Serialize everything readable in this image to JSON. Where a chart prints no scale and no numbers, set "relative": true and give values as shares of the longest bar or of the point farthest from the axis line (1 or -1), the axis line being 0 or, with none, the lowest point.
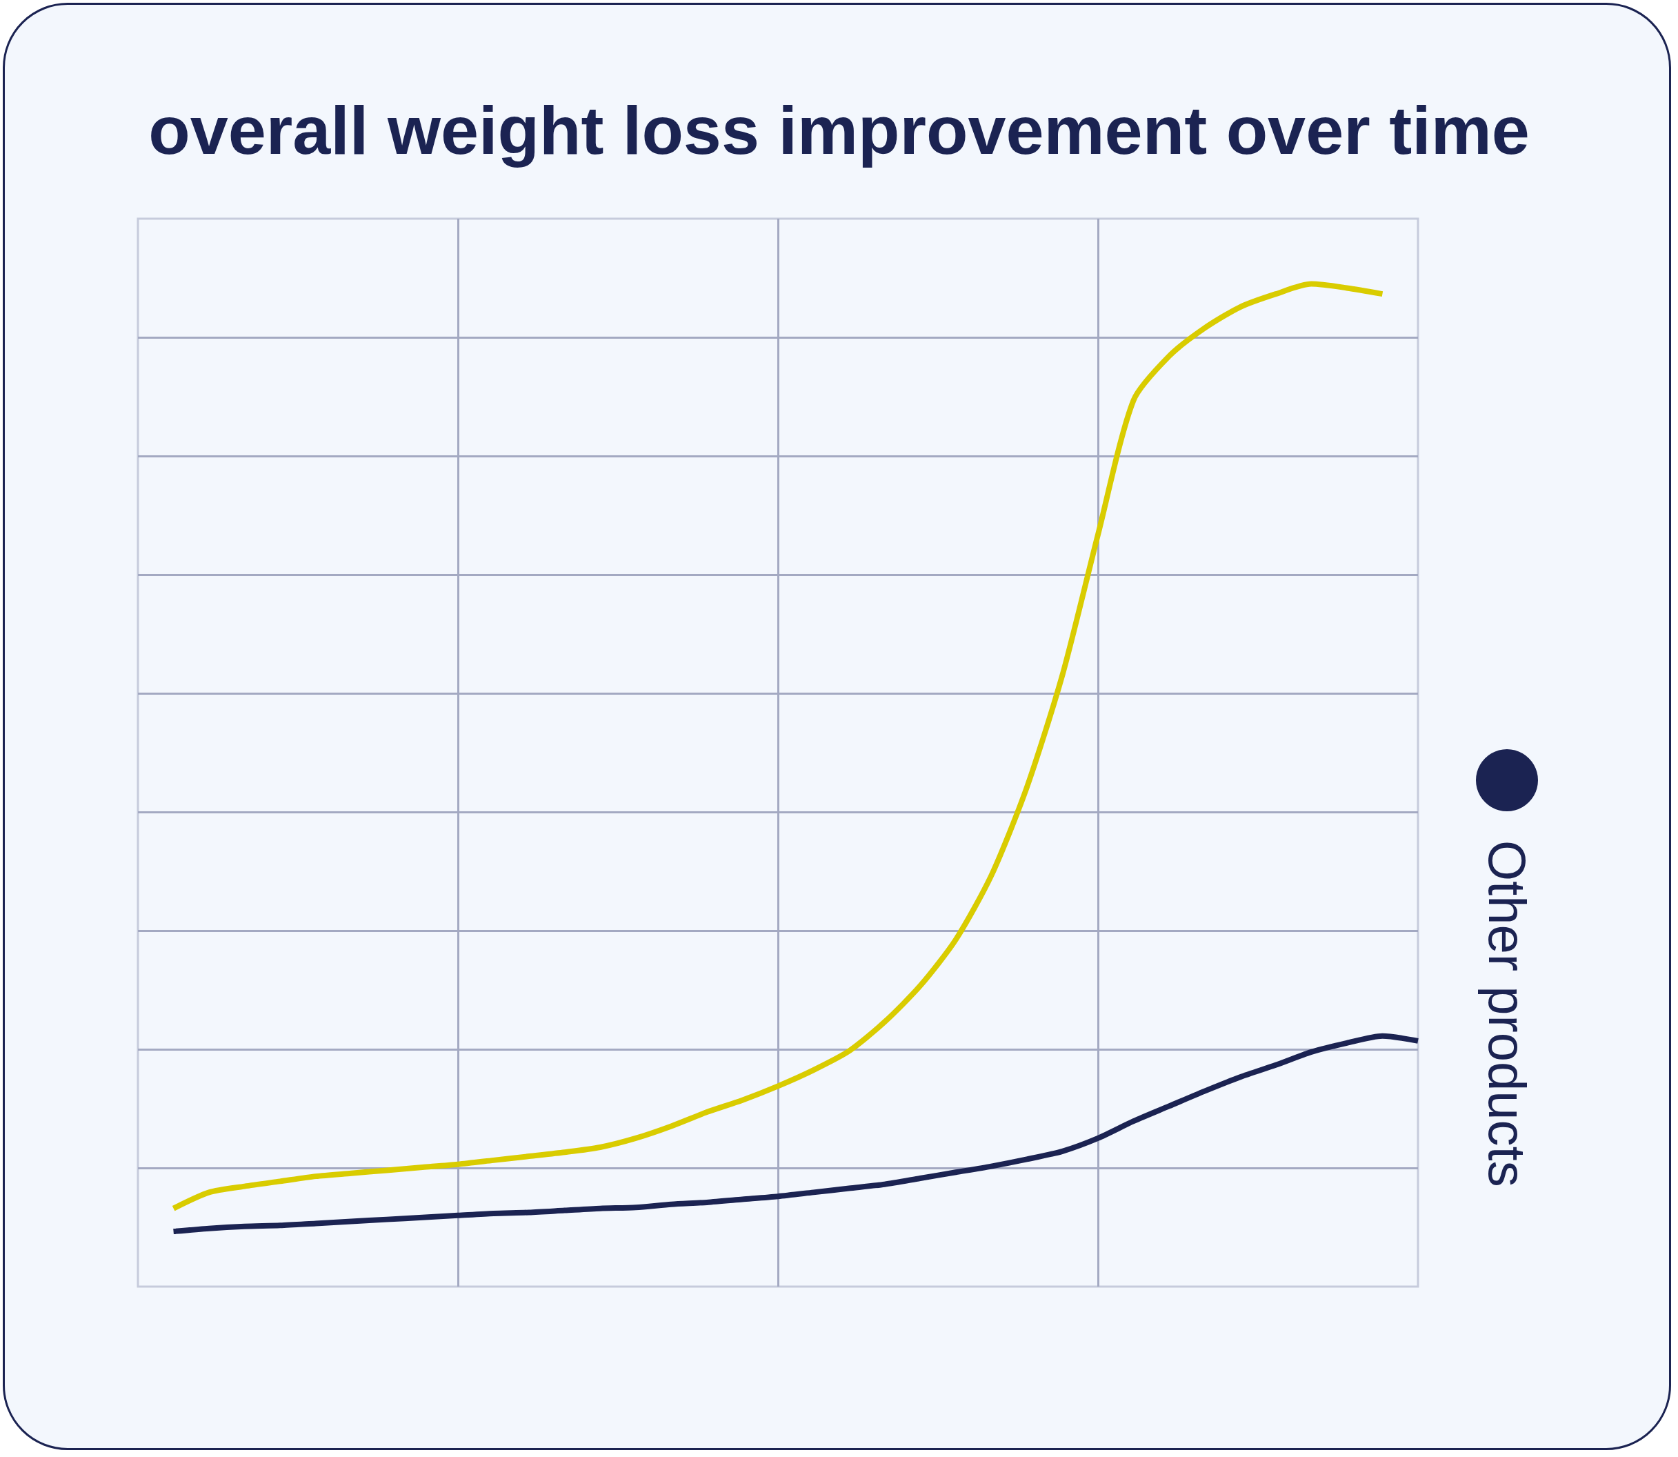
{
  "chart_data": {
    "type": "line",
    "title": "overall weight loss improvement over time",
    "relative": true,
    "grid": true,
    "legend": "right",
    "categories": [
      null,
      null,
      null,
      null,
      null,
      null,
      null,
      null,
      null,
      null,
      null,
      null,
      null,
      null,
      null,
      null,
      null,
      null,
      null,
      null,
      null,
      null,
      null,
      null,
      null,
      null,
      null,
      null,
      null,
      null,
      null,
      null,
      null,
      null,
      null,
      null,
      null
    ],
    "series": [
      {
        "color": "#d9cc00",
        "values": [
          null,
          0.078,
          0.094,
          0.1,
          0.105,
          0.11,
          0.113,
          0.116,
          0.119,
          0.122,
          0.126,
          0.13,
          0.134,
          0.139,
          0.148,
          0.16,
          0.174,
          0.186,
          0.2,
          0.216,
          0.235,
          0.264,
          0.3,
          0.346,
          0.41,
          0.498,
          0.61,
          0.75,
          0.884,
          0.928,
          0.956,
          0.977,
          0.99,
          1.0,
          0.996,
          0.99,
          null
        ]
      },
      {
        "name": "Other products",
        "color": "#1b2352",
        "values": [
          null,
          0.055,
          0.058,
          0.06,
          0.061,
          0.063,
          0.065,
          0.067,
          0.069,
          0.071,
          0.073,
          0.074,
          0.076,
          0.078,
          0.079,
          0.082,
          0.084,
          0.087,
          0.09,
          0.094,
          0.098,
          0.102,
          0.108,
          0.114,
          0.12,
          0.127,
          0.135,
          0.148,
          0.165,
          0.18,
          0.195,
          0.209,
          0.221,
          0.234,
          0.243,
          0.25,
          0.245
        ]
      }
    ]
  }
}
